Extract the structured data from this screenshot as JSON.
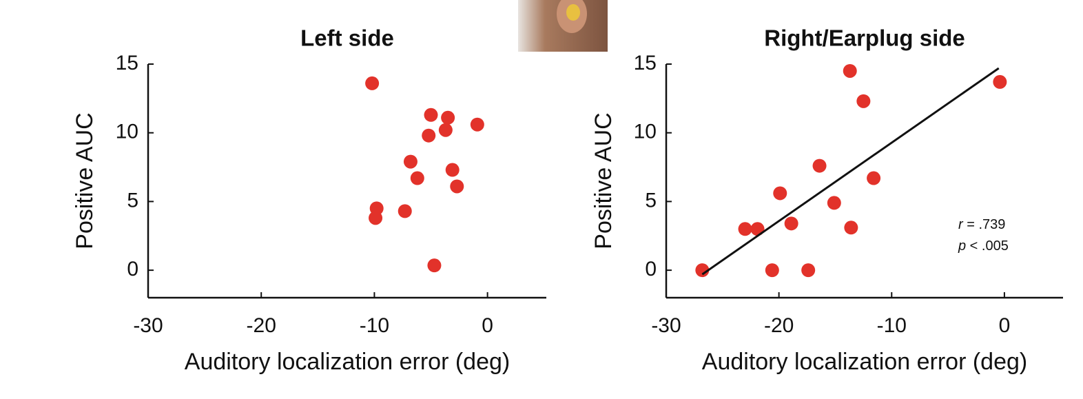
{
  "chart_data": [
    {
      "type": "scatter",
      "title": "Left side",
      "x_label": "Auditory localization error (deg)",
      "y_label": "Positive AUC",
      "color": "#e2322a",
      "x": [
        -10.2,
        -5.0,
        -3.5,
        -3.7,
        -0.9,
        -5.2,
        -6.8,
        -3.1,
        -6.2,
        -2.7,
        -9.8,
        -9.9,
        -7.3,
        -4.7
      ],
      "values": [
        13.6,
        11.3,
        11.1,
        10.2,
        10.6,
        9.8,
        7.9,
        7.3,
        6.7,
        6.1,
        4.5,
        3.8,
        4.3,
        0.35
      ],
      "xlim": [
        -30,
        5.2
      ],
      "ylim": [
        -2,
        15
      ],
      "xticks": [
        -30,
        -20,
        -10,
        0
      ],
      "yticks": [
        0,
        5,
        10,
        15
      ]
    },
    {
      "type": "scatter",
      "title": "Right/Earplug side",
      "x_label": "Auditory localization error (deg)",
      "y_label": "Positive AUC",
      "color": "#e2322a",
      "x": [
        -13.7,
        -0.4,
        -12.5,
        -16.4,
        -11.6,
        -19.9,
        -15.1,
        -23.0,
        -21.9,
        -18.9,
        -13.6,
        -26.8,
        -20.6,
        -17.4
      ],
      "values": [
        14.5,
        13.7,
        12.3,
        7.6,
        6.7,
        5.6,
        4.9,
        3.0,
        3.0,
        3.4,
        3.1,
        0,
        0,
        0
      ],
      "fit_line": {
        "x": [
          -26.8,
          -0.5
        ],
        "values": [
          -0.3,
          14.7
        ]
      },
      "stats": [
        {
          "symbol": "r",
          "text": " = .739"
        },
        {
          "symbol": "p",
          "text": " < .005"
        }
      ],
      "xlim": [
        -30,
        5.2
      ],
      "ylim": [
        -2,
        15
      ],
      "xticks": [
        -30,
        -20,
        -10,
        0
      ],
      "yticks": [
        0,
        5,
        10,
        15
      ]
    }
  ]
}
